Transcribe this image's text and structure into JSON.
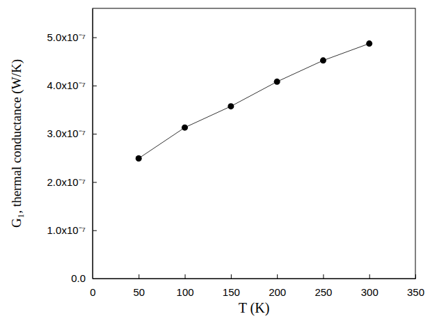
{
  "chart_data": {
    "type": "line",
    "x_label": "T (K)",
    "y_label": "G₁, thermal conductance (W/K)",
    "x": [
      50,
      100,
      150,
      200,
      250,
      300
    ],
    "values": [
      2.49e-07,
      3.13e-07,
      3.57e-07,
      4.08e-07,
      4.52e-07,
      4.87e-07
    ],
    "color": "#000000",
    "marker": "circle",
    "line_style": "solid",
    "xlim": [
      0,
      350
    ],
    "xticks": [
      0,
      50,
      100,
      150,
      200,
      250,
      300,
      350
    ],
    "ylim": [
      0,
      5.6e-07
    ],
    "yticks": [
      {
        "value": 0,
        "label": "0.0"
      },
      {
        "value": 1e-07,
        "label": "1.0x10⁻⁷"
      },
      {
        "value": 2e-07,
        "label": "2.0x10⁻⁷"
      },
      {
        "value": 3e-07,
        "label": "3.0x10⁻⁷"
      },
      {
        "value": 4e-07,
        "label": "4.0x10⁻⁷"
      },
      {
        "value": 5e-07,
        "label": "5.0x10⁻⁷"
      }
    ]
  }
}
